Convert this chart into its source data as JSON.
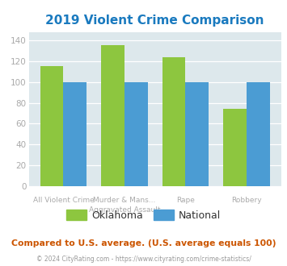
{
  "title": "2019 Violent Crime Comparison",
  "oklahoma_color": "#8dc63f",
  "national_color": "#4b9cd3",
  "title_color": "#1a7abf",
  "bg_color": "#dde8ec",
  "ylim": [
    0,
    148
  ],
  "yticks": [
    0,
    20,
    40,
    60,
    80,
    100,
    120,
    140
  ],
  "legend_labels": [
    "Oklahoma",
    "National"
  ],
  "footer_text": "Compared to U.S. average. (U.S. average equals 100)",
  "copyright_text": "© 2024 CityRating.com - https://www.cityrating.com/crime-statistics/",
  "bar_groups": [
    {
      "label_top": "All Violent Crime",
      "label_bot": "",
      "ok": 115,
      "nat": 100
    },
    {
      "label_top": "Murder & Mans...",
      "label_bot": "Aggravated Assault",
      "ok": 135,
      "nat": 100
    },
    {
      "label_top": "Rape",
      "label_bot": "",
      "ok": 124,
      "nat": 100
    },
    {
      "label_top": "Robbery",
      "label_bot": "",
      "ok": 74,
      "nat": 100
    }
  ],
  "bar_width": 0.38,
  "grid_color": "#c8d8de",
  "tick_color": "#aaaaaa",
  "footer_color": "#cc5500",
  "copy_color": "#999999",
  "legend_text_color": "#333333"
}
